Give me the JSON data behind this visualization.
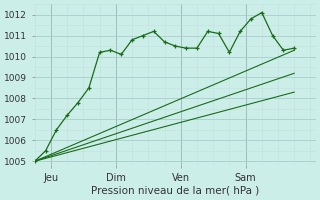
{
  "title": "",
  "xlabel": "Pression niveau de la mer( hPa )",
  "ylabel": "",
  "bg_color": "#cceee8",
  "grid_color_major": "#aacccc",
  "grid_color_minor": "#c4e0dc",
  "line_color": "#1a6b1a",
  "ylim": [
    1004.8,
    1012.5
  ],
  "xlim": [
    0,
    52
  ],
  "yticks": [
    1005,
    1006,
    1007,
    1008,
    1009,
    1010,
    1011,
    1012
  ],
  "xticks": [
    3,
    15,
    27,
    39
  ],
  "xtick_labels": [
    "Jeu",
    "Dim",
    "Ven",
    "Sam"
  ],
  "vlines": [
    3,
    15,
    27,
    39
  ],
  "series": [
    {
      "x": [
        0,
        2,
        4,
        6,
        8,
        10,
        12,
        14,
        16,
        18,
        20,
        22,
        24,
        26,
        28,
        30,
        32,
        34,
        36,
        38,
        40,
        42,
        44,
        46,
        48
      ],
      "y": [
        1005.0,
        1005.5,
        1006.5,
        1007.2,
        1007.8,
        1008.5,
        1010.2,
        1010.3,
        1010.1,
        1010.8,
        1011.0,
        1011.2,
        1010.7,
        1010.5,
        1010.4,
        1010.4,
        1011.2,
        1011.1,
        1010.2,
        1011.2,
        1011.8,
        1012.1,
        1011.0,
        1010.3,
        1010.4
      ],
      "marker": "+"
    },
    {
      "x": [
        0,
        48
      ],
      "y": [
        1005.0,
        1010.3
      ],
      "marker": null
    },
    {
      "x": [
        0,
        48
      ],
      "y": [
        1005.0,
        1009.2
      ],
      "marker": null
    },
    {
      "x": [
        0,
        48
      ],
      "y": [
        1005.0,
        1008.3
      ],
      "marker": null
    }
  ]
}
